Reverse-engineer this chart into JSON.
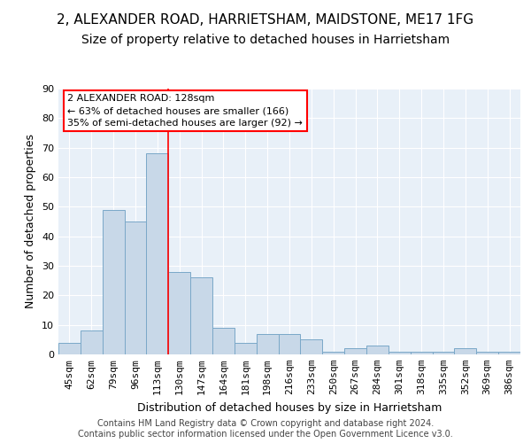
{
  "title1": "2, ALEXANDER ROAD, HARRIETSHAM, MAIDSTONE, ME17 1FG",
  "title2": "Size of property relative to detached houses in Harrietsham",
  "xlabel": "Distribution of detached houses by size in Harrietsham",
  "ylabel": "Number of detached properties",
  "bin_labels": [
    "45sqm",
    "62sqm",
    "79sqm",
    "96sqm",
    "113sqm",
    "130sqm",
    "147sqm",
    "164sqm",
    "181sqm",
    "198sqm",
    "216sqm",
    "233sqm",
    "250sqm",
    "267sqm",
    "284sqm",
    "301sqm",
    "318sqm",
    "335sqm",
    "352sqm",
    "369sqm",
    "386sqm"
  ],
  "bar_values": [
    4,
    8,
    49,
    45,
    68,
    28,
    26,
    9,
    4,
    7,
    7,
    5,
    1,
    2,
    3,
    1,
    1,
    1,
    2,
    1,
    1
  ],
  "bar_color": "#c8d8e8",
  "bar_edge_color": "#7aa8c8",
  "vline_color": "red",
  "annotation_text": "2 ALEXANDER ROAD: 128sqm\n← 63% of detached houses are smaller (166)\n35% of semi-detached houses are larger (92) →",
  "annotation_box_color": "white",
  "annotation_box_edge_color": "red",
  "ylim": [
    0,
    90
  ],
  "yticks": [
    0,
    10,
    20,
    30,
    40,
    50,
    60,
    70,
    80,
    90
  ],
  "background_color": "#e8f0f8",
  "footer_line1": "Contains HM Land Registry data © Crown copyright and database right 2024.",
  "footer_line2": "Contains public sector information licensed under the Open Government Licence v3.0.",
  "title1_fontsize": 11,
  "title2_fontsize": 10,
  "xlabel_fontsize": 9,
  "ylabel_fontsize": 9,
  "tick_fontsize": 8,
  "annotation_fontsize": 8,
  "footer_fontsize": 7
}
